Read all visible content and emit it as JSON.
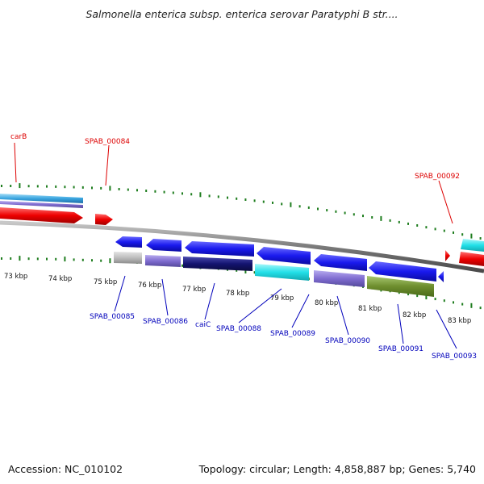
{
  "title": "Salmonella enterica subsp. enterica serovar Paratyphi B str....",
  "footer": {
    "accession": "Accession: NC_010102",
    "summary": "Topology: circular; Length: 4,858,887 bp; Genes: 5,740"
  },
  "ticks": [
    {
      "label": "73 kbp"
    },
    {
      "label": "74 kbp"
    },
    {
      "label": "75 kbp"
    },
    {
      "label": "76 kbp"
    },
    {
      "label": "77 kbp"
    },
    {
      "label": "78 kbp"
    },
    {
      "label": "79 kbp"
    },
    {
      "label": "80 kbp"
    },
    {
      "label": "81 kbp"
    },
    {
      "label": "82 kbp"
    },
    {
      "label": "83 kbp"
    }
  ],
  "upper_labels": [
    "carB",
    "SPAB_00084",
    "SPAB_00092"
  ],
  "lower_labels": [
    "SPAB_00085",
    "SPAB_00086",
    "caiC",
    "SPAB_00088",
    "SPAB_00089",
    "SPAB_00090",
    "SPAB_00091",
    "SPAB_00093"
  ],
  "colors": {
    "red_label": "#dd0000",
    "blue_label": "#0000bb",
    "cds_blue": "#1a1aee",
    "cyan": "#22e0e8",
    "lavender": "#7f6cd0",
    "navy": "#141470",
    "olive": "#6e8e2e",
    "grey": "#bdbdbd",
    "red": "#ee0000",
    "tick_green": "#1e7d1e",
    "backbone": "#7a7a7a"
  }
}
